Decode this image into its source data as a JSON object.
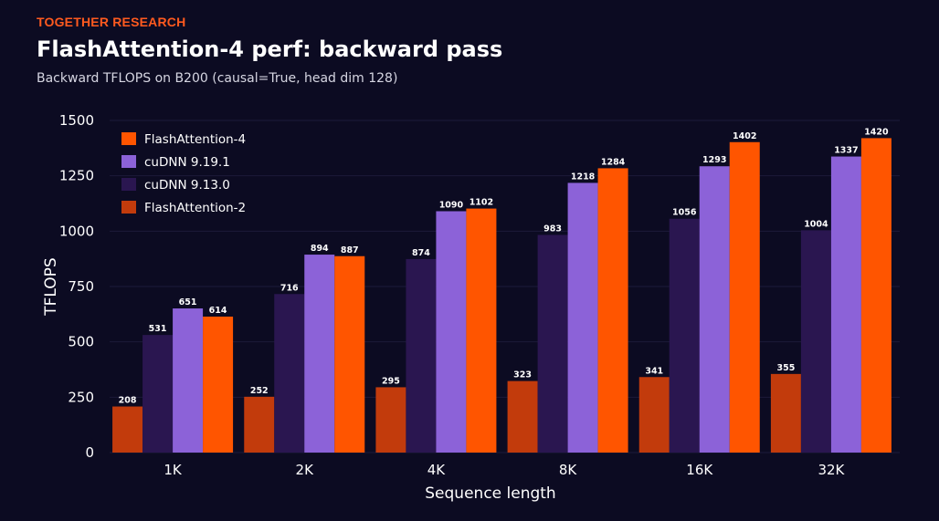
{
  "header": {
    "brand": "TOGETHER RESEARCH",
    "title": "FlashAttention-4 perf: backward pass",
    "subtitle": "Backward TFLOPS on B200 (causal=True, head dim 128)"
  },
  "chart_data": {
    "type": "bar",
    "xlabel": "Sequence length",
    "ylabel": "TFLOPS",
    "ylim": [
      0,
      1500
    ],
    "yticks": [
      0,
      250,
      500,
      750,
      1000,
      1250,
      1500
    ],
    "grid": "horizontal",
    "legend_position": "top-left",
    "categories": [
      "1K",
      "2K",
      "4K",
      "8K",
      "16K",
      "32K"
    ],
    "series": [
      {
        "name": "FlashAttention-2",
        "color": "#c23b0c",
        "values": [
          208,
          252,
          295,
          323,
          341,
          355
        ]
      },
      {
        "name": "cuDNN 9.13.0",
        "color": "#2a1650",
        "values": [
          531,
          716,
          874,
          983,
          1056,
          1004
        ]
      },
      {
        "name": "cuDNN 9.19.1",
        "color": "#8c62d8",
        "values": [
          651,
          894,
          1090,
          1218,
          1293,
          1337
        ]
      },
      {
        "name": "FlashAttention-4",
        "color": "#ff5500",
        "values": [
          614,
          887,
          1102,
          1284,
          1402,
          1420
        ]
      }
    ],
    "legend_order": [
      "FlashAttention-4",
      "cuDNN 9.19.1",
      "cuDNN 9.13.0",
      "FlashAttention-2"
    ]
  }
}
